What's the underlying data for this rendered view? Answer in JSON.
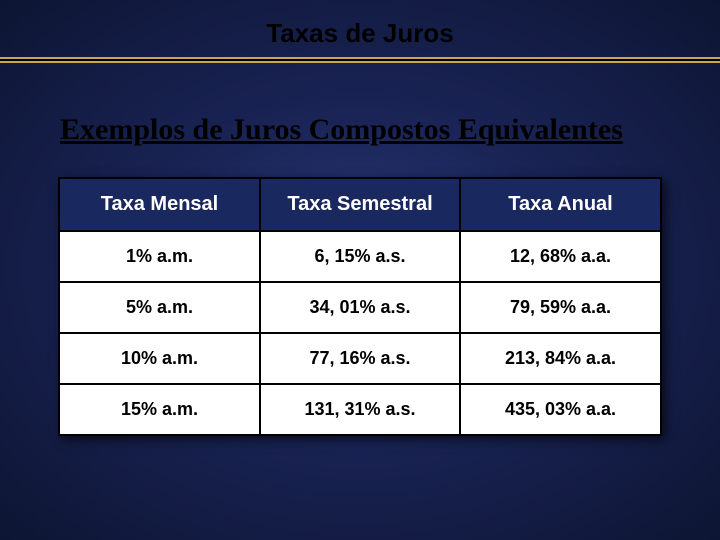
{
  "title": "Taxas de Juros",
  "subtitle": "Exemplos de Juros Compostos Equivalentes",
  "table": {
    "columns": [
      "Taxa Mensal",
      "Taxa Semestral",
      "Taxa Anual"
    ],
    "rows": [
      [
        "1% a.m.",
        "6, 15% a.s.",
        "12, 68% a.a."
      ],
      [
        "5% a.m.",
        "34, 01% a.s.",
        "79, 59% a.a."
      ],
      [
        "10% a.m.",
        "77, 16% a.s.",
        "213, 84% a.a."
      ],
      [
        "15% a.m.",
        "131, 31% a.s.",
        "435, 03% a.a."
      ]
    ],
    "header_bg": "#1a2860",
    "header_fg": "#ffffff",
    "cell_bg": "#ffffff",
    "cell_fg": "#000000",
    "border_color": "#000000",
    "header_fontsize": 20,
    "cell_fontsize": 18,
    "col_widths": [
      "33.3%",
      "33.3%",
      "33.3%"
    ]
  },
  "colors": {
    "background_center": "#2a3a7a",
    "background_mid": "#1a2456",
    "background_edge": "#0d1533",
    "underline_accent": "#c9a74a",
    "title_color": "#000000",
    "subtitle_color": "#000000"
  },
  "fonts": {
    "title_fontsize": 26,
    "subtitle_fontsize": 30,
    "subtitle_family": "Times New Roman"
  }
}
